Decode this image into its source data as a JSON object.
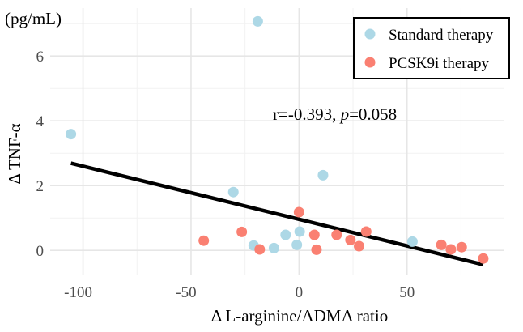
{
  "chart_data": {
    "type": "scatter",
    "xlabel": "Δ L-arginine/ADMA ratio",
    "ylabel": "Δ TNF-α",
    "yunit": "(pg/mL)",
    "xlim": [
      -115.2,
      94.7
    ],
    "ylim": [
      -0.77,
      7.48
    ],
    "xticks": [
      -100,
      -50,
      0,
      50
    ],
    "xtick_labels": [
      "-100",
      "-50",
      "0",
      "50"
    ],
    "xminor": [
      -75,
      -25,
      25,
      75
    ],
    "yticks": [
      0,
      2,
      4,
      6
    ],
    "ytick_labels": [
      "0",
      "2",
      "4",
      "6"
    ],
    "yminor": [
      1,
      3,
      5,
      7
    ],
    "grid": true,
    "legend_position": "top-right",
    "annotation": {
      "r_text": "r=-0.393, ",
      "p_label": "p",
      "p_text": "=0.058"
    },
    "fit_line": {
      "x": [
        -105.6,
        85.3
      ],
      "y": [
        2.69,
        -0.44
      ],
      "color": "#000000"
    },
    "series": [
      {
        "name": "Standard therapy",
        "color": "#ADD8E6",
        "points": [
          [
            -19.1,
            7.07
          ],
          [
            -105.6,
            3.59
          ],
          [
            -30.4,
            1.8
          ],
          [
            -21,
            0.15
          ],
          [
            -11.6,
            0.07
          ],
          [
            -6.2,
            0.48
          ],
          [
            0.3,
            0.58
          ],
          [
            -1,
            0.17
          ],
          [
            11.1,
            2.32
          ],
          [
            52.5,
            0.27
          ]
        ]
      },
      {
        "name": "PCSK9i therapy",
        "color": "#FA8072",
        "points": [
          [
            -44.1,
            0.3
          ],
          [
            -26.5,
            0.57
          ],
          [
            -18.2,
            0.03
          ],
          [
            0,
            1.18
          ],
          [
            7.1,
            0.48
          ],
          [
            8.1,
            0.02
          ],
          [
            17.4,
            0.48
          ],
          [
            23.8,
            0.32
          ],
          [
            27.8,
            0.13
          ],
          [
            31.1,
            0.58
          ],
          [
            65.9,
            0.17
          ],
          [
            70.3,
            0.03
          ],
          [
            75.3,
            0.1
          ],
          [
            85.3,
            -0.25
          ]
        ]
      }
    ]
  }
}
